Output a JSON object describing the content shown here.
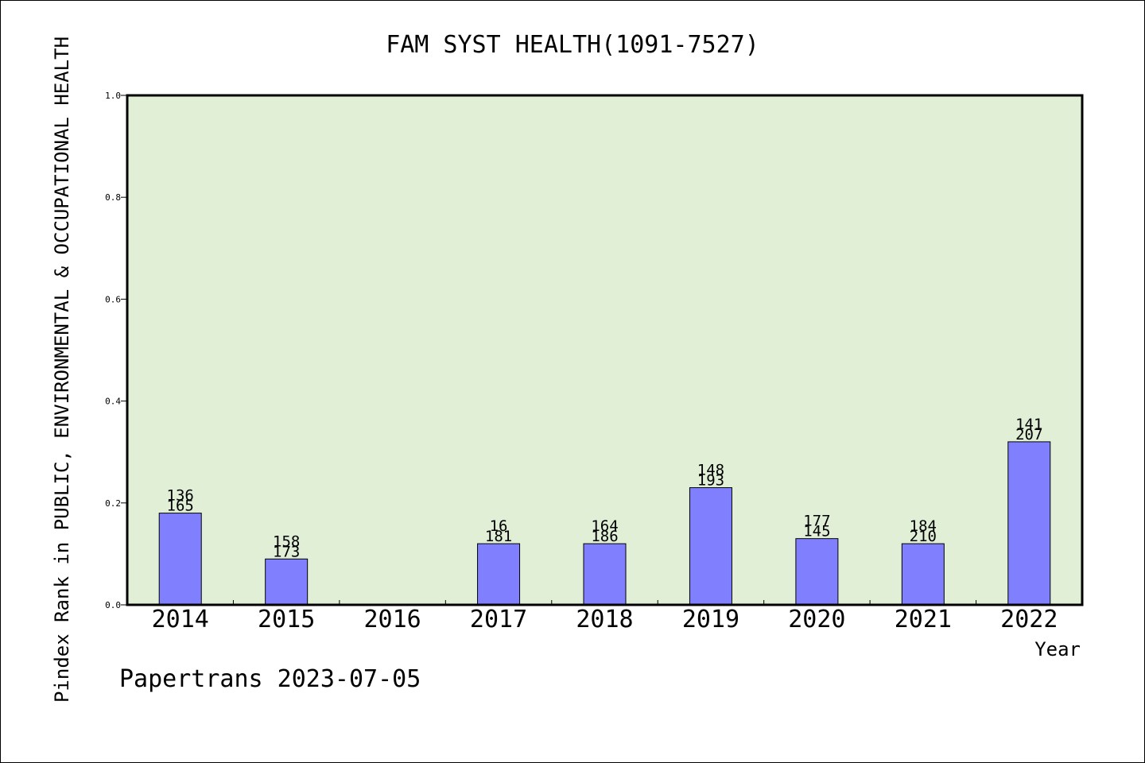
{
  "chart_data": {
    "type": "bar",
    "title": "FAM SYST HEALTH(1091-7527)",
    "xlabel": "Year",
    "ylabel": "Pindex Rank in PUBLIC, ENVIRONMENTAL & OCCUPATIONAL HEALTH",
    "ylim": [
      0,
      1.0
    ],
    "yticks": [
      "0.0",
      "0.2",
      "0.4",
      "0.6",
      "0.8",
      "1.0"
    ],
    "categories": [
      "2014",
      "2015",
      "2016",
      "2017",
      "2018",
      "2019",
      "2020",
      "2021",
      "2022"
    ],
    "values": [
      0.18,
      0.09,
      null,
      0.12,
      0.12,
      0.23,
      0.13,
      0.12,
      0.32
    ],
    "labels_top": [
      "136",
      "158",
      "",
      "16",
      "164",
      "148",
      "177",
      "184",
      "141"
    ],
    "labels_bottom": [
      "165",
      "173",
      "",
      "181",
      "186",
      "193",
      "145",
      "210",
      "207"
    ],
    "grid": false,
    "plot_background": "#e1efd7",
    "bar_color": "#8080ff"
  },
  "footer": "Papertrans 2023-07-05"
}
